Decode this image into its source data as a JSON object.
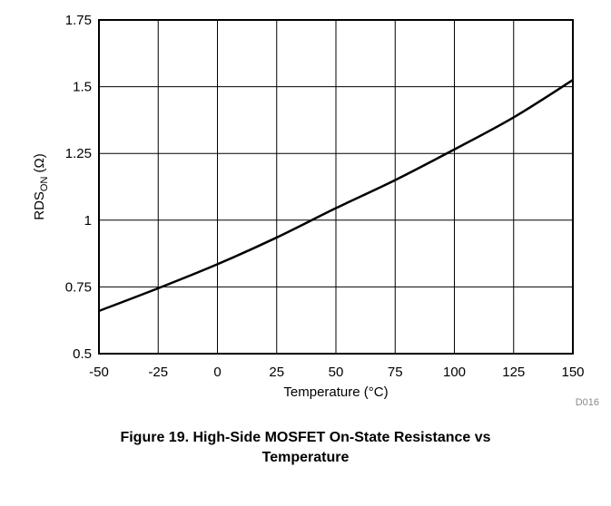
{
  "chart_data": {
    "type": "line",
    "xlabel": "Temperature (°C)",
    "ylabel": {
      "main": "RDS",
      "subscript": "ON",
      "unit": " (Ω)"
    },
    "xlim": [
      -50,
      150
    ],
    "ylim": [
      0.5,
      1.75
    ],
    "x_ticks": [
      -50,
      -25,
      0,
      25,
      50,
      75,
      100,
      125,
      150
    ],
    "x_tick_labels": [
      "-50",
      "-25",
      "0",
      "25",
      "50",
      "75",
      "100",
      "125",
      "150"
    ],
    "y_ticks": [
      0.5,
      0.75,
      1,
      1.25,
      1.5,
      1.75
    ],
    "y_tick_labels": [
      "0.5",
      "0.75",
      "1",
      "1.25",
      "1.5",
      "1.75"
    ],
    "grid": true,
    "line_color": "#000000",
    "series": [
      {
        "x": [
          -50,
          -25,
          0,
          25,
          50,
          75,
          100,
          125,
          150
        ],
        "y": [
          0.66,
          0.745,
          0.835,
          0.935,
          1.045,
          1.15,
          1.265,
          1.385,
          1.525
        ]
      }
    ],
    "figure_id": "D016"
  },
  "caption": {
    "line1": "Figure 19.  High-Side MOSFET On-State Resistance vs",
    "line2": "Temperature"
  }
}
